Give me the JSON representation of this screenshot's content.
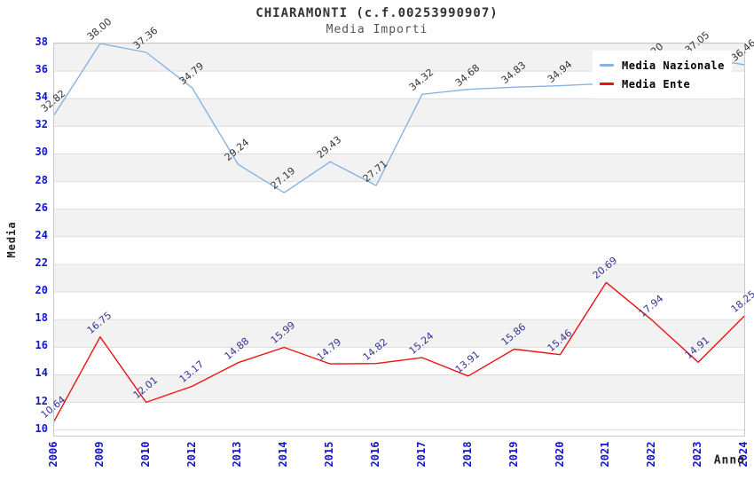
{
  "title": "CHIARAMONTI (c.f.00253990907)",
  "subtitle": "Media Importi",
  "legend": {
    "position": "top-right",
    "items": [
      {
        "label": "Media Nazionale",
        "color": "#85b3e3"
      },
      {
        "label": "Media Ente",
        "color": "#ee1111"
      }
    ]
  },
  "chart_data": {
    "type": "line",
    "title": "CHIARAMONTI (c.f.00253990907)",
    "subtitle": "Media Importi",
    "xlabel": "Anno",
    "ylabel": "Media",
    "x": [
      "2006",
      "2009",
      "2010",
      "2012",
      "2013",
      "2014",
      "2015",
      "2016",
      "2017",
      "2018",
      "2019",
      "2020",
      "2021",
      "2022",
      "2023",
      "2024"
    ],
    "series": [
      {
        "name": "Media Nazionale",
        "color": "#85b3e3",
        "label_color": "#333333",
        "values": [
          32.82,
          38.0,
          37.36,
          34.79,
          29.24,
          27.19,
          29.43,
          27.71,
          34.32,
          34.68,
          34.83,
          34.94,
          35.1,
          36.2,
          37.05,
          36.46
        ],
        "labels_hidden_behind_legend_indices": [
          12,
          13
        ]
      },
      {
        "name": "Media Ente",
        "color": "#ee1111",
        "label_color": "#333399",
        "values": [
          10.64,
          16.75,
          12.01,
          13.17,
          14.88,
          15.99,
          14.79,
          14.82,
          15.24,
          13.91,
          15.86,
          15.46,
          20.69,
          17.94,
          14.91,
          18.25
        ]
      }
    ],
    "label_format": "0.00",
    "ylim": [
      10,
      38
    ],
    "yticks": [
      10,
      12,
      14,
      16,
      18,
      20,
      22,
      24,
      26,
      28,
      30,
      32,
      34,
      36,
      38
    ],
    "grid": "horizontal-bands-alternating",
    "legend_position": "top-right"
  },
  "colors": {
    "background": "#ffffff",
    "band": "#f2f2f2",
    "gridline": "#dddddd",
    "plot_border": "#c9c9c9",
    "tick_label": "#1414cc",
    "title": "#333333",
    "subtitle": "#555555",
    "axis_label": "#222222",
    "media_nazionale": "#85b3e3",
    "media_ente": "#ee1111",
    "media_nazionale_point_label": "#333333",
    "media_ente_point_label": "#333399"
  }
}
